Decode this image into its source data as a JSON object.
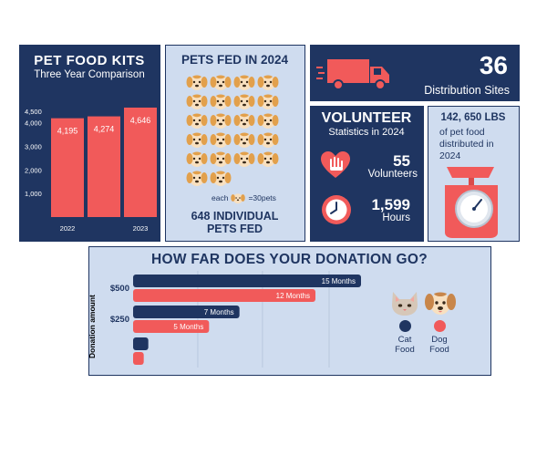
{
  "colors": {
    "navy": "#1f3561",
    "coral": "#f15a5a",
    "light": "#cfdcef",
    "dog_tan": "#e2a04c",
    "face": "#f8e0c0"
  },
  "kits": {
    "title": "PET FOOD KITS",
    "subtitle": "Three Year Comparison"
  },
  "fed": {
    "title": "PETS FED IN 2024",
    "icon": "dog-face-icon",
    "icon_count": 22,
    "legend_each": "each",
    "legend_value": "=30pets",
    "headline_1": "648 INDIVIDUAL",
    "headline_2": "PETS FED"
  },
  "sites": {
    "value": "36",
    "label": "Distribution Sites",
    "icon": "truck-icon"
  },
  "volunteer": {
    "title": "VOLUNTEER",
    "subtitle": "Statistics in 2024",
    "count": "55",
    "count_label": "Volunteers",
    "hours": "1,599",
    "hours_label": "Hours",
    "icons": [
      "heart-hands-icon",
      "clock-icon"
    ]
  },
  "lbs": {
    "value": "142, 650 LBS",
    "line1": "of pet food",
    "line2": "distributed in",
    "line3": "2024",
    "icon": "scale-icon"
  },
  "donation": {
    "title": "HOW FAR DOES YOUR DONATION GO?",
    "ylabel": "Donation amount",
    "legend": [
      {
        "label_1": "Cat",
        "label_2": "Food",
        "color": "#1f3561",
        "icon": "cat-face-icon"
      },
      {
        "label_1": "Dog",
        "label_2": "Food",
        "color": "#f15a5a",
        "icon": "dog-face-icon"
      }
    ]
  },
  "chart_data": [
    {
      "type": "bar",
      "title": "PET FOOD KITS",
      "subtitle": "Three Year Comparison",
      "categories": [
        "2022",
        "2023"
      ],
      "bars": [
        {
          "x_label": "2022",
          "value": 4195,
          "data_label": "4,195"
        },
        {
          "x_label": "",
          "value": 4274,
          "data_label": "4,274"
        },
        {
          "x_label": "2023",
          "value": 4646,
          "data_label": "4,646"
        }
      ],
      "y_ticks": [
        "1,000",
        "2,000",
        "3,000",
        "4,000",
        "4,500"
      ],
      "y_tick_values": [
        1000,
        2000,
        3000,
        4000,
        4500
      ],
      "ylim": [
        0,
        4800
      ],
      "grid": false
    },
    {
      "type": "bar",
      "orientation": "horizontal",
      "title": "HOW FAR DOES YOUR DONATION GO?",
      "ylabel": "Donation amount",
      "unit": "Months",
      "categories": [
        "$500",
        "$250",
        ""
      ],
      "series": [
        {
          "name": "Cat Food",
          "color": "#1f3561",
          "values": [
            15,
            7,
            1
          ],
          "data_labels": [
            "15 Months",
            "7 Months",
            ""
          ]
        },
        {
          "name": "Dog Food",
          "color": "#f15a5a",
          "values": [
            12,
            5,
            0.7
          ],
          "data_labels": [
            "12 Months",
            "5 Months",
            ""
          ]
        }
      ],
      "xlim": [
        0,
        15
      ],
      "grid": true,
      "legend": "right"
    }
  ]
}
